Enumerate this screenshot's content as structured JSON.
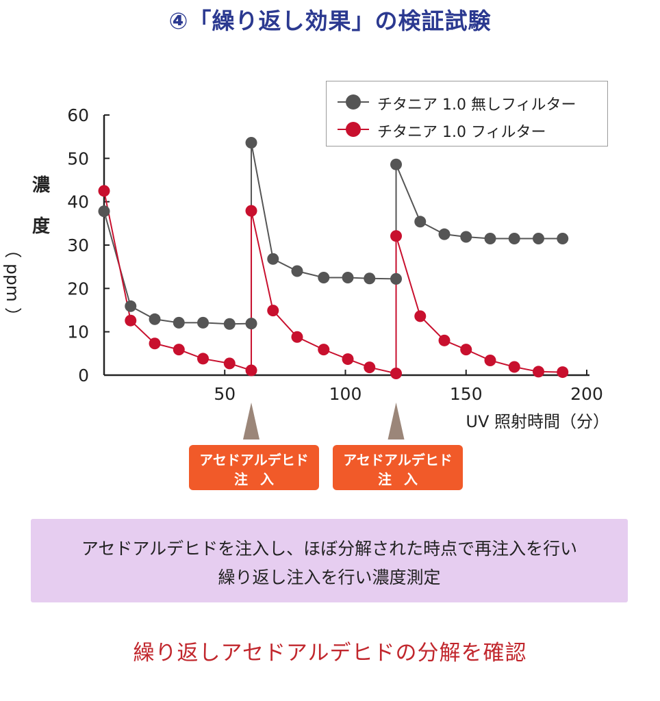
{
  "title": "④「繰り返し効果」の検証試験",
  "legend": {
    "items": [
      {
        "label": "チタニア 1.0 無しフィルター",
        "color": "#555555"
      },
      {
        "label": "チタニア 1.0 フィルター",
        "color": "#c8102e"
      }
    ]
  },
  "ylabel": {
    "char1": "濃",
    "char2": "度",
    "unit": "（ ppm ）"
  },
  "xlabel": "UV 照射時間（分）",
  "injections": [
    {
      "line1": "アセドアルデヒド",
      "line2": "注入"
    },
    {
      "line1": "アセドアルデヒド",
      "line2": "注入"
    }
  ],
  "note": {
    "line1": "アセドアルデヒドを注入し、ほぼ分解された時点で再注入を行い",
    "line2": "繰り返し注入を行い濃度測定"
  },
  "conclusion": "繰り返しアセドアルデヒドの分解を確認",
  "chart_data": {
    "type": "line",
    "xlabel": "UV 照射時間（分）",
    "ylabel": "濃度（ppm）",
    "xlim": [
      0,
      200
    ],
    "ylim": [
      0,
      60
    ],
    "xticks": [
      50,
      100,
      150,
      200
    ],
    "yticks": [
      0,
      10,
      20,
      30,
      40,
      50,
      60
    ],
    "grid": false,
    "legend_position": "top-right",
    "series": [
      {
        "name": "チタニア 1.0 無しフィルター",
        "color": "#555555",
        "points": [
          [
            0,
            37.8
          ],
          [
            11,
            15.9
          ],
          [
            21,
            12.9
          ],
          [
            31,
            12.1
          ],
          [
            41,
            12.1
          ],
          [
            52,
            11.8
          ],
          [
            61,
            11.9
          ],
          [
            61,
            53.6
          ],
          [
            70,
            26.8
          ],
          [
            80,
            24.0
          ],
          [
            91,
            22.5
          ],
          [
            101,
            22.5
          ],
          [
            110,
            22.3
          ],
          [
            121,
            22.2
          ],
          [
            121,
            48.6
          ],
          [
            131,
            35.4
          ],
          [
            141,
            32.5
          ],
          [
            150,
            31.9
          ],
          [
            160,
            31.5
          ],
          [
            170,
            31.5
          ],
          [
            180,
            31.5
          ],
          [
            190,
            31.5
          ]
        ]
      },
      {
        "name": "チタニア 1.0 フィルター",
        "color": "#c8102e",
        "points": [
          [
            0,
            42.5
          ],
          [
            11,
            12.6
          ],
          [
            21,
            7.3
          ],
          [
            31,
            5.9
          ],
          [
            41,
            3.8
          ],
          [
            52,
            2.7
          ],
          [
            61,
            1.1
          ],
          [
            61,
            37.9
          ],
          [
            70,
            14.9
          ],
          [
            80,
            8.8
          ],
          [
            91,
            5.9
          ],
          [
            101,
            3.7
          ],
          [
            110,
            1.8
          ],
          [
            121,
            0.4
          ],
          [
            121,
            32.1
          ],
          [
            131,
            13.6
          ],
          [
            141,
            8.0
          ],
          [
            150,
            5.9
          ],
          [
            160,
            3.4
          ],
          [
            170,
            1.9
          ],
          [
            180,
            0.8
          ],
          [
            190,
            0.7
          ]
        ]
      }
    ],
    "injection_times": [
      61,
      121
    ]
  }
}
